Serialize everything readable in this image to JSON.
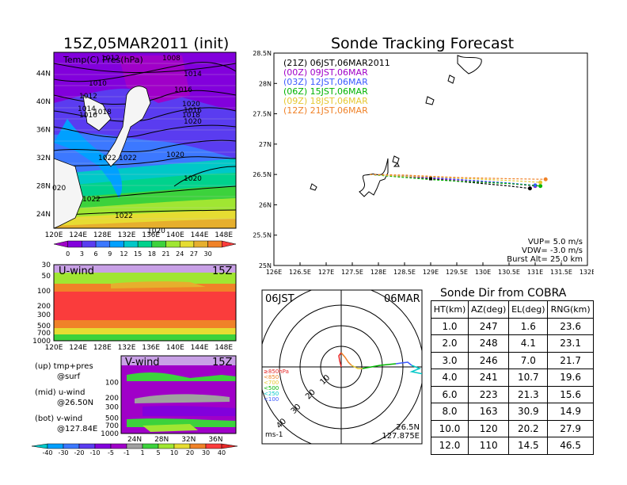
{
  "map_panel": {
    "title": "15Z,05MAR2011 (init)",
    "subtitle": "Temp(C) Pres(hPa)",
    "lon_ticks": [
      "120E",
      "124E",
      "128E",
      "132E",
      "136E",
      "140E",
      "144E",
      "148E"
    ],
    "lat_ticks": [
      "44N",
      "40N",
      "36N",
      "32N",
      "28N",
      "24N"
    ],
    "isobar_labels": [
      "1012",
      "1008",
      "1014",
      "1010",
      "1016",
      "1012",
      "1020",
      "1014",
      "1016",
      "1016",
      "1018",
      "1018",
      "1020",
      "1022",
      "1020",
      "1022",
      "1020",
      "1022",
      "020",
      "1022",
      "1020"
    ],
    "colorbar_ticks": [
      "0",
      "3",
      "6",
      "9",
      "12",
      "15",
      "18",
      "21",
      "24",
      "27",
      "30"
    ],
    "colorbar_colors": [
      "#a000c8",
      "#8200dc",
      "#5a3cf0",
      "#3c78ff",
      "#00a0ff",
      "#00c8c8",
      "#00d28c",
      "#3cd23c",
      "#a0e632",
      "#e6dc32",
      "#e6af2d",
      "#f08228",
      "#fa3c3c"
    ]
  },
  "uwind_panel": {
    "label": "U-wind",
    "time": "15Z",
    "y_ticks": [
      "30",
      "50",
      "100",
      "200",
      "300",
      "500",
      "700",
      "1000"
    ],
    "x_ticks": [
      "120E",
      "124E",
      "128E",
      "132E",
      "136E",
      "140E",
      "144E",
      "148E"
    ]
  },
  "vwind_panel": {
    "label": "V-wind",
    "time": "15Z",
    "y_ticks": [
      "100",
      "200",
      "300",
      "500",
      "700",
      "1000"
    ],
    "x_ticks": [
      "24N",
      "28N",
      "32N",
      "36N"
    ]
  },
  "notes": [
    {
      "a": "(up) tmp+pres",
      "b": "@surf"
    },
    {
      "a": "(mid) u-wind",
      "b": "@26.50N"
    },
    {
      "a": "(bot) v-wind",
      "b": "@127.84E"
    }
  ],
  "wind_colorbar": {
    "ticks": [
      "-40",
      "-30",
      "-20",
      "-10",
      "-5",
      "-1",
      "1",
      "5",
      "10",
      "20",
      "30",
      "40"
    ],
    "colors": [
      "#00c8c8",
      "#00a0ff",
      "#3c78ff",
      "#5a3cf0",
      "#8200dc",
      "#a000c8",
      "#a0a0a0",
      "#3cd23c",
      "#a0e632",
      "#e6dc32",
      "#f08228",
      "#fa3c3c",
      "#e62828"
    ]
  },
  "tracking": {
    "title": "Sonde Tracking Forecast",
    "legend": [
      {
        "text": "(21Z) 06JST,06MAR2011",
        "color": "#000000"
      },
      {
        "text": "(00Z) 09JST,06MAR",
        "color": "#a000c8"
      },
      {
        "text": "(03Z) 12JST,06MAR",
        "color": "#3c5aff"
      },
      {
        "text": "(06Z) 15JST,06MAR",
        "color": "#00b400"
      },
      {
        "text": "(09Z) 18JST,06MAR",
        "color": "#e6c832"
      },
      {
        "text": "(12Z) 21JST,06MAR",
        "color": "#f08228"
      }
    ],
    "params": [
      "VUP= 5.0 m/s",
      "VDW= -3.0 m/s",
      "Burst Alt= 25.0 km"
    ]
  },
  "polar": {
    "left_label": "06JST",
    "right_label": "06MAR",
    "unit": "ms-1",
    "lat": "26.5N",
    "lon": "127.875E",
    "ring_labels": [
      "10",
      "20",
      "30",
      "40"
    ],
    "pressure_legend": [
      {
        "text": "≥850hPa",
        "color": "#e62828"
      },
      {
        "text": "<850",
        "color": "#f08228"
      },
      {
        "text": "<700",
        "color": "#e6c832"
      },
      {
        "text": "<500",
        "color": "#00b400"
      },
      {
        "text": "<250",
        "color": "#00c8c8"
      },
      {
        "text": "<100",
        "color": "#3c5aff"
      }
    ]
  },
  "sonde_dir": {
    "title": "Sonde Dir from COBRA",
    "headers": [
      "HT(km)",
      "AZ(deg)",
      "EL(deg)",
      "RNG(km)"
    ],
    "rows": [
      [
        "1.0",
        "247",
        "1.6",
        "23.6"
      ],
      [
        "2.0",
        "248",
        "4.1",
        "23.1"
      ],
      [
        "3.0",
        "246",
        "7.0",
        "21.7"
      ],
      [
        "4.0",
        "241",
        "10.7",
        "19.6"
      ],
      [
        "6.0",
        "223",
        "21.3",
        "15.6"
      ],
      [
        "8.0",
        "163",
        "30.9",
        "14.9"
      ],
      [
        "10.0",
        "120",
        "20.2",
        "27.9"
      ],
      [
        "12.0",
        "110",
        "14.5",
        "46.5"
      ]
    ]
  },
  "chart_data": [
    {
      "type": "heatmap",
      "title": "15Z,05MAR2011 (init)",
      "subtitle": "Temp(C) Pres(hPa)",
      "x_range": [
        120,
        150
      ],
      "y_range": [
        22,
        47
      ],
      "colorbar": [
        0,
        3,
        6,
        9,
        12,
        15,
        18,
        21,
        24,
        27,
        30
      ],
      "isobar_labels": [
        1008,
        1010,
        1012,
        1014,
        1016,
        1018,
        1020,
        1022
      ]
    },
    {
      "type": "heatmap",
      "title": "U-wind",
      "x_range": [
        120,
        150
      ],
      "y_range": [
        1000,
        30
      ],
      "y_scale": "log"
    },
    {
      "type": "heatmap",
      "title": "V-wind",
      "x_range": [
        22,
        39
      ],
      "y_range": [
        1000,
        30
      ],
      "y_scale": "log",
      "colorbar": [
        -40,
        -30,
        -20,
        -10,
        -5,
        -1,
        1,
        5,
        10,
        20,
        30,
        40
      ]
    },
    {
      "type": "line",
      "title": "Sonde Tracking Forecast",
      "x_ticks": [
        "126E",
        "126.5E",
        "127E",
        "127.5E",
        "128E",
        "128.5E",
        "129E",
        "129.5E",
        "130E",
        "130.5E",
        "131E",
        "131.5E",
        "132E"
      ],
      "y_ticks": [
        "25N",
        "25.5N",
        "26N",
        "26.5N",
        "27N",
        "27.5N",
        "28N",
        "28.5N"
      ],
      "xlim": [
        126,
        132
      ],
      "ylim": [
        25,
        28.5
      ],
      "start": [
        128.0,
        26.5
      ],
      "series": [
        {
          "name": "(21Z) 06JST,06MAR2011",
          "color": "#000000",
          "x": [
            127.84,
            128.5,
            129.0,
            129.5,
            130.0,
            130.5,
            130.9
          ],
          "y": [
            26.5,
            26.47,
            26.43,
            26.39,
            26.35,
            26.31,
            26.27
          ]
        },
        {
          "name": "(00Z) 09JST,06MAR",
          "color": "#a000c8",
          "x": [
            127.84,
            128.5,
            129.0,
            129.5,
            130.0,
            130.5,
            131.0
          ],
          "y": [
            26.5,
            26.47,
            26.44,
            26.41,
            26.38,
            26.35,
            26.31
          ]
        },
        {
          "name": "(03Z) 12JST,06MAR",
          "color": "#3c5aff",
          "x": [
            127.84,
            128.5,
            129.0,
            129.5,
            130.0,
            130.5,
            131.0
          ],
          "y": [
            26.5,
            26.48,
            26.45,
            26.42,
            26.39,
            26.36,
            26.32
          ]
        },
        {
          "name": "(06Z) 15JST,06MAR",
          "color": "#00b400",
          "x": [
            127.84,
            128.5,
            129.1,
            129.5,
            130.0,
            130.5,
            131.1
          ],
          "y": [
            26.5,
            26.45,
            26.41,
            26.39,
            26.37,
            26.35,
            26.31
          ]
        },
        {
          "name": "(09Z) 18JST,06MAR",
          "color": "#e6c832",
          "x": [
            127.84,
            128.5,
            129.1,
            129.5,
            130.0,
            130.5,
            131.1
          ],
          "y": [
            26.5,
            26.47,
            26.46,
            26.44,
            26.42,
            26.4,
            26.37
          ]
        },
        {
          "name": "(12Z) 21JST,06MAR",
          "color": "#f08228",
          "x": [
            127.84,
            128.5,
            129.0,
            129.5,
            130.0,
            130.5,
            131.2
          ],
          "y": [
            26.5,
            26.49,
            26.47,
            26.45,
            26.44,
            26.43,
            26.42
          ]
        }
      ]
    }
  ]
}
